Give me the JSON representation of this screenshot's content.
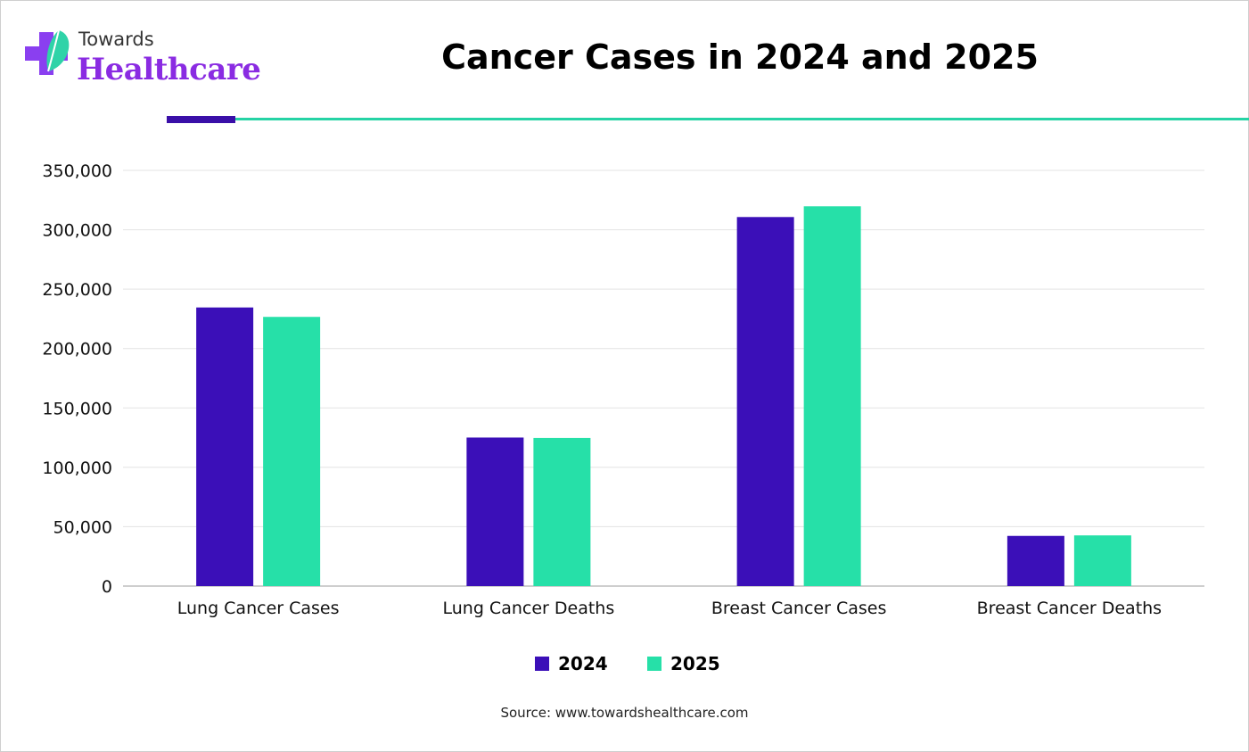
{
  "logo": {
    "line1": "Towards",
    "line2": "Healthcare"
  },
  "title": "Cancer Cases in 2024 and 2025",
  "source": "Source: www.towardshealthcare.com",
  "colors": {
    "series_2024": "#3b0fb8",
    "series_2025": "#26e0a8",
    "accent_rule": "#26d3a5",
    "accent_block": "#3a0fa8"
  },
  "chart_data": {
    "type": "bar",
    "categories": [
      "Lung Cancer Cases",
      "Lung Cancer Deaths",
      "Breast Cancer Cases",
      "Breast Cancer Deaths"
    ],
    "series": [
      {
        "name": "2024",
        "values": [
          234580,
          125070,
          310720,
          42250
        ]
      },
      {
        "name": "2025",
        "values": [
          226650,
          124730,
          319750,
          42680
        ]
      }
    ],
    "yticks": [
      "0",
      "50,000",
      "100,000",
      "150,000",
      "200,000",
      "250,000",
      "300,000",
      "350,000"
    ],
    "ylim": [
      0,
      350000
    ],
    "grid": true,
    "legend": "bottom-center"
  }
}
